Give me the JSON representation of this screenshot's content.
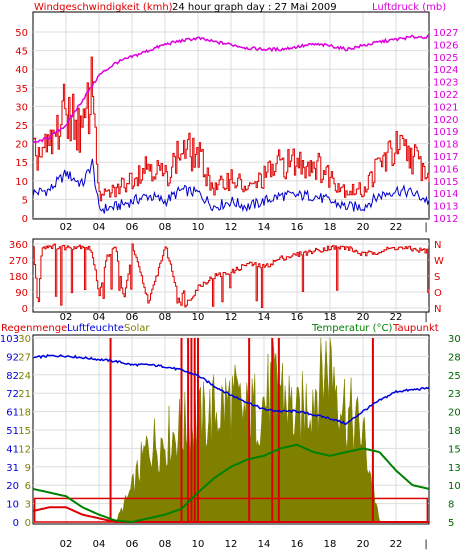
{
  "panel1": {
    "header_left": "Windgeschwindigkeit (kmh)",
    "header_center": "24 hour graph day : 27 Mai 2009",
    "header_right": "Luftdruck (mb)",
    "left_ticks": [
      "0",
      "5",
      "10",
      "15",
      "20",
      "25",
      "30",
      "35",
      "40",
      "45",
      "50"
    ],
    "right_ticks": [
      "1012",
      "1013",
      "1014",
      "1015",
      "1016",
      "1017",
      "1018",
      "1019",
      "1020",
      "1021",
      "1022",
      "1023",
      "1024",
      "1025",
      "1026",
      "1027"
    ]
  },
  "panel2": {
    "left_ticks": [
      "0",
      "90",
      "180",
      "270",
      "360"
    ],
    "right_labels": [
      "N",
      "W",
      "S",
      "O",
      "N"
    ]
  },
  "panel3": {
    "header_regen": "Regenmenge",
    "header_feuchte": "Luftfeuchte",
    "header_solar": "Solar",
    "header_temp": "Temperatur (°C)",
    "header_taupunkt": "Taupunkt",
    "left_ticks": [
      "0",
      "10",
      "20",
      "31",
      "41",
      "51",
      "61",
      "72",
      "82",
      "92",
      "103"
    ],
    "left2_ticks": [
      "0",
      "3",
      "6",
      "9",
      "12",
      "15",
      "18",
      "21",
      "24",
      "27",
      "30"
    ],
    "right_ticks": [
      "5",
      "8",
      "10",
      "13",
      "15",
      "18",
      "20",
      "23",
      "25",
      "28",
      "30"
    ]
  },
  "x_labels": [
    "02",
    "04",
    "06",
    "08",
    "10",
    "12",
    "14",
    "16",
    "18",
    "20",
    "22"
  ],
  "colors": {
    "wind": "#dd0000",
    "gust": "#0000cc",
    "pressure": "#dd00dd",
    "direction": "#dd0000",
    "rain": "#dd0000",
    "humidity": "#0000dd",
    "solar": "#808000",
    "temperature": "#008000",
    "dewpoint": "#dd0000",
    "grid": "#dddddd",
    "axis_green": "#006600"
  },
  "chart_data": [
    {
      "type": "line",
      "series": [
        {
          "name": "Windgeschwindigkeit",
          "x": [
            0,
            1,
            2,
            3,
            3.6,
            4,
            5,
            6,
            7,
            8,
            9,
            10,
            11,
            12,
            13,
            14,
            15,
            16,
            17,
            18,
            19,
            20,
            21,
            22,
            23,
            24
          ],
          "values": [
            9,
            10,
            16,
            12,
            20,
            3,
            4,
            6,
            8,
            6,
            10,
            9,
            4,
            6,
            4,
            6,
            8,
            8,
            8,
            6,
            4,
            4,
            8,
            10,
            9,
            6
          ]
        },
        {
          "name": "Luftdruck",
          "x": [
            0,
            1,
            2,
            3,
            4,
            5,
            6,
            7,
            8,
            9,
            10,
            11,
            12,
            13,
            14,
            15,
            16,
            17,
            18,
            19,
            20,
            21,
            22,
            23,
            24
          ],
          "values": [
            1018,
            1018.5,
            1019.5,
            1021.5,
            1023.5,
            1024.5,
            1025,
            1025.5,
            1026,
            1026.3,
            1026.5,
            1026.2,
            1026,
            1025.7,
            1025.6,
            1025.6,
            1025.8,
            1026,
            1025.9,
            1025.6,
            1025.9,
            1026.2,
            1026.4,
            1026.6,
            1026.6
          ]
        }
      ],
      "xlim": [
        0,
        24
      ],
      "ylim": [
        0,
        50
      ],
      "y2lim": [
        1012,
        1027
      ]
    },
    {
      "type": "line",
      "series": [
        {
          "name": "Windrichtung",
          "x": [
            0,
            0.3,
            0.5,
            1,
            2,
            3,
            3.5,
            4,
            4.5,
            5,
            5.5,
            6,
            7,
            8,
            9,
            9.5,
            10,
            11,
            12,
            13,
            14,
            15,
            16,
            17,
            18,
            19,
            20,
            21,
            22,
            23,
            24
          ],
          "values": [
            340,
            0,
            340,
            350,
            340,
            350,
            330,
            80,
            300,
            340,
            40,
            350,
            30,
            350,
            0,
            50,
            120,
            180,
            200,
            250,
            230,
            280,
            300,
            320,
            340,
            340,
            300,
            320,
            340,
            330,
            320
          ]
        }
      ],
      "xlim": [
        0,
        24
      ],
      "ylim": [
        0,
        360
      ]
    },
    {
      "type": "line",
      "series": [
        {
          "name": "Luftfeuchte",
          "x": [
            0,
            1,
            2,
            3,
            4,
            5,
            6,
            7,
            8,
            9,
            10,
            11,
            12,
            13,
            14,
            15,
            16,
            17,
            18,
            19,
            20,
            21,
            22,
            23,
            24
          ],
          "values": [
            92,
            93,
            93,
            92,
            91,
            90,
            88,
            88,
            87,
            85,
            82,
            76,
            71,
            67,
            63,
            62,
            62,
            60,
            58,
            55,
            62,
            68,
            73,
            74,
            75
          ]
        },
        {
          "name": "Solar",
          "x": [
            0,
            1,
            2,
            3,
            4,
            5,
            6,
            7,
            8,
            9,
            10,
            11,
            12,
            13,
            14,
            15,
            16,
            17,
            18,
            19,
            20,
            21,
            22,
            23,
            24
          ],
          "values": [
            0,
            0,
            0,
            0,
            0,
            0,
            6,
            14,
            15,
            17,
            18,
            20,
            22,
            19,
            22,
            25,
            18,
            24,
            30,
            20,
            16,
            0,
            0,
            0,
            0
          ]
        },
        {
          "name": "Temperatur",
          "x": [
            0,
            1,
            2,
            3,
            4,
            5,
            6,
            7,
            8,
            9,
            10,
            11,
            12,
            13,
            14,
            15,
            16,
            17,
            18,
            19,
            20,
            21,
            22,
            23,
            24
          ],
          "values": [
            9.5,
            9,
            8.5,
            7,
            6,
            5.2,
            5,
            5.5,
            6,
            6.8,
            9,
            11,
            12.5,
            13.5,
            14,
            15,
            15.5,
            14.5,
            14,
            14.5,
            15,
            14.5,
            12,
            10,
            9.5
          ]
        },
        {
          "name": "Taupunkt",
          "x": [
            0,
            1,
            2,
            3,
            4,
            5,
            6,
            7,
            8,
            9,
            10,
            11,
            12,
            13,
            14,
            15,
            16,
            17,
            18,
            19,
            20,
            21,
            22,
            23,
            24
          ],
          "values": [
            6.5,
            7,
            7,
            6,
            5.5,
            5,
            5,
            5,
            5,
            5,
            5,
            5,
            5,
            5,
            5,
            5,
            5,
            5,
            5,
            5,
            5,
            5,
            5,
            5,
            5
          ]
        },
        {
          "name": "Regenmenge",
          "x": [
            0,
            24
          ],
          "values": [
            0.5,
            0.5
          ]
        }
      ],
      "xlim": [
        0,
        24
      ],
      "ylim": [
        0,
        103
      ],
      "y2lim": [
        5,
        30
      ]
    }
  ]
}
